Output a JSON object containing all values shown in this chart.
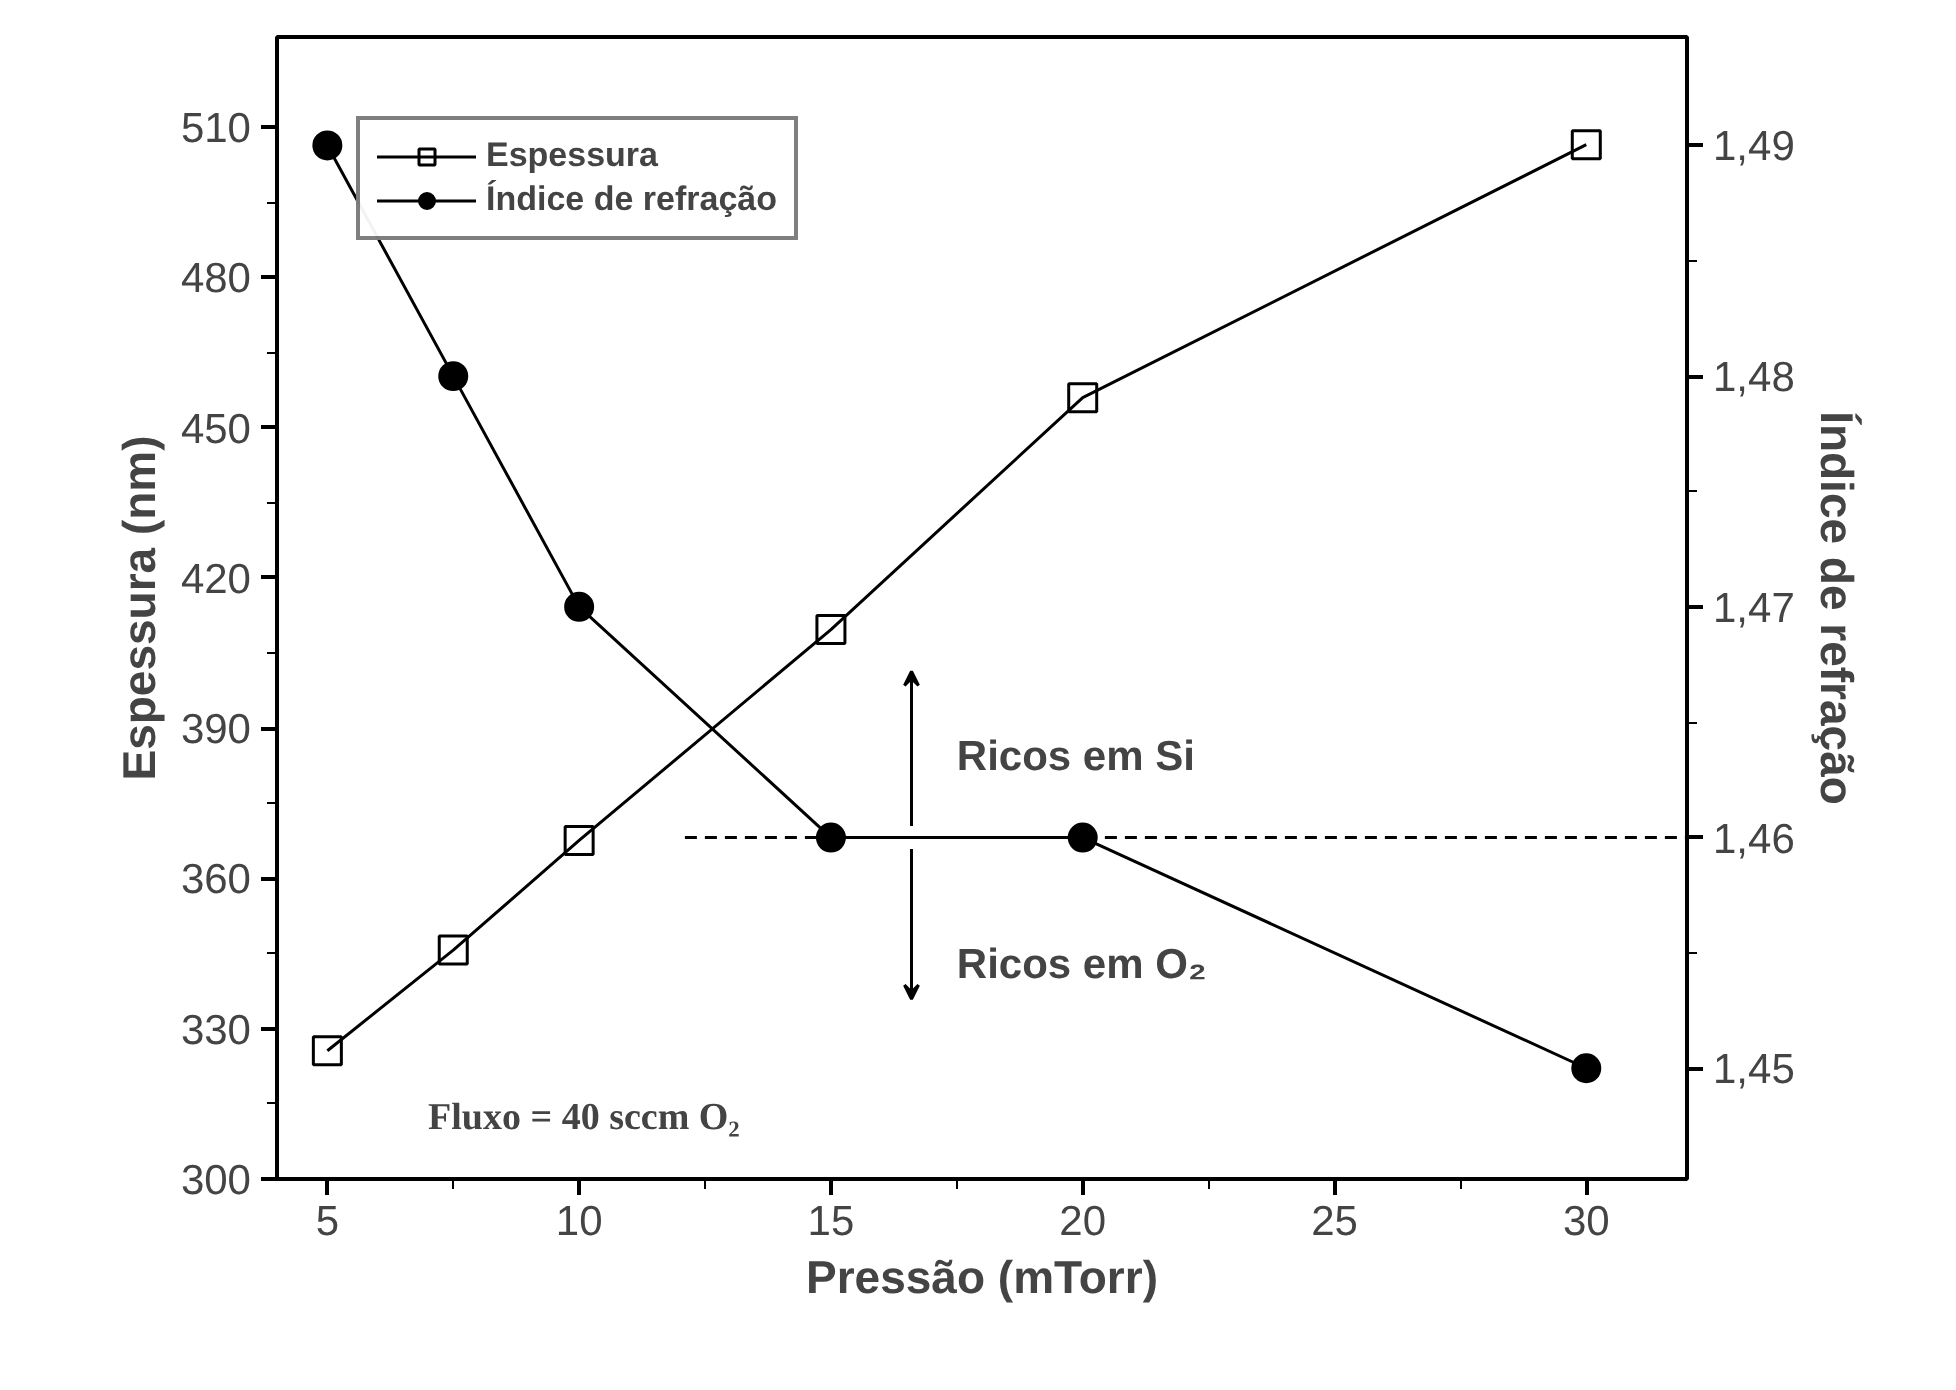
{
  "chart_data": {
    "type": "line",
    "xlabel": "Pressão (mTorr)",
    "ylabel": "Espessura (nm)",
    "y2label": "Índice de refração",
    "x": [
      5,
      7.5,
      10,
      15,
      20,
      30
    ],
    "series": [
      {
        "name": "Espessura",
        "color": "#000000",
        "marker": "square",
        "values": [
          325.6,
          345.7,
          367.6,
          409.7,
          456,
          506.5
        ]
      },
      {
        "name": "Índice de refração",
        "color": "#000000",
        "marker": "circle",
        "axis": "y2",
        "values": [
          1.49,
          1.48,
          1.47,
          1.46,
          1.46,
          1.45
        ]
      },
      {
        "color": "#000000",
        "marker": "none",
        "line_style": "dashed",
        "axis": "y2",
        "x": [
          12.1,
          32
        ],
        "values": [
          1.46,
          1.46
        ]
      }
    ],
    "xlim": [
      4,
      32
    ],
    "xticks": [
      5,
      10,
      15,
      20,
      25,
      30
    ],
    "ylim": [
      300,
      528
    ],
    "yticks": [
      300,
      330,
      360,
      390,
      420,
      450,
      480,
      510
    ],
    "y2lim": [
      1.4452,
      1.4947
    ],
    "y2ticks": [
      {
        "value": 1.45,
        "label": "1,45"
      },
      {
        "value": 1.46,
        "label": "1,46"
      },
      {
        "value": 1.47,
        "label": "1,47"
      },
      {
        "value": 1.48,
        "label": "1,48"
      },
      {
        "value": 1.49,
        "label": "1,49"
      }
    ],
    "annotations": [
      "Ricos em Si",
      "Ricos em O₂",
      "Fluxo = 40 sccm O₂"
    ],
    "legend": "top left",
    "grid": false
  }
}
